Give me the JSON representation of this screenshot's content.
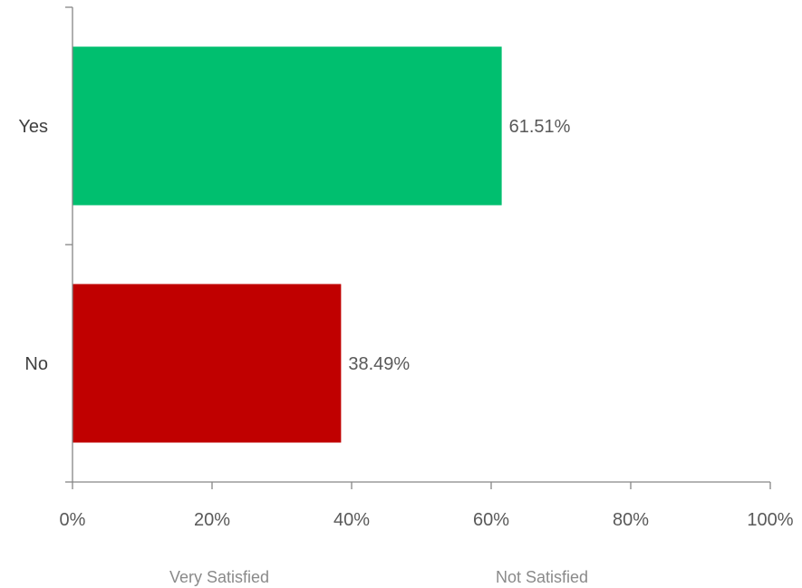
{
  "chart_data": {
    "type": "bar",
    "orientation": "horizontal",
    "categories": [
      "Yes",
      "No"
    ],
    "values": [
      61.51,
      38.49
    ],
    "data_labels": [
      "61.51%",
      "38.49%"
    ],
    "colors": [
      "#00BF6F",
      "#C00000"
    ],
    "xlim": [
      0,
      100
    ],
    "x_ticks": [
      0,
      20,
      40,
      60,
      80,
      100
    ],
    "x_tick_labels": [
      "0%",
      "20%",
      "40%",
      "60%",
      "80%",
      "100%"
    ],
    "title": "",
    "xlabel": "",
    "ylabel": "",
    "grid": false,
    "legend": "none"
  },
  "footer": {
    "left_label": "Very Satisfied",
    "right_label": "Not Satisfied"
  }
}
